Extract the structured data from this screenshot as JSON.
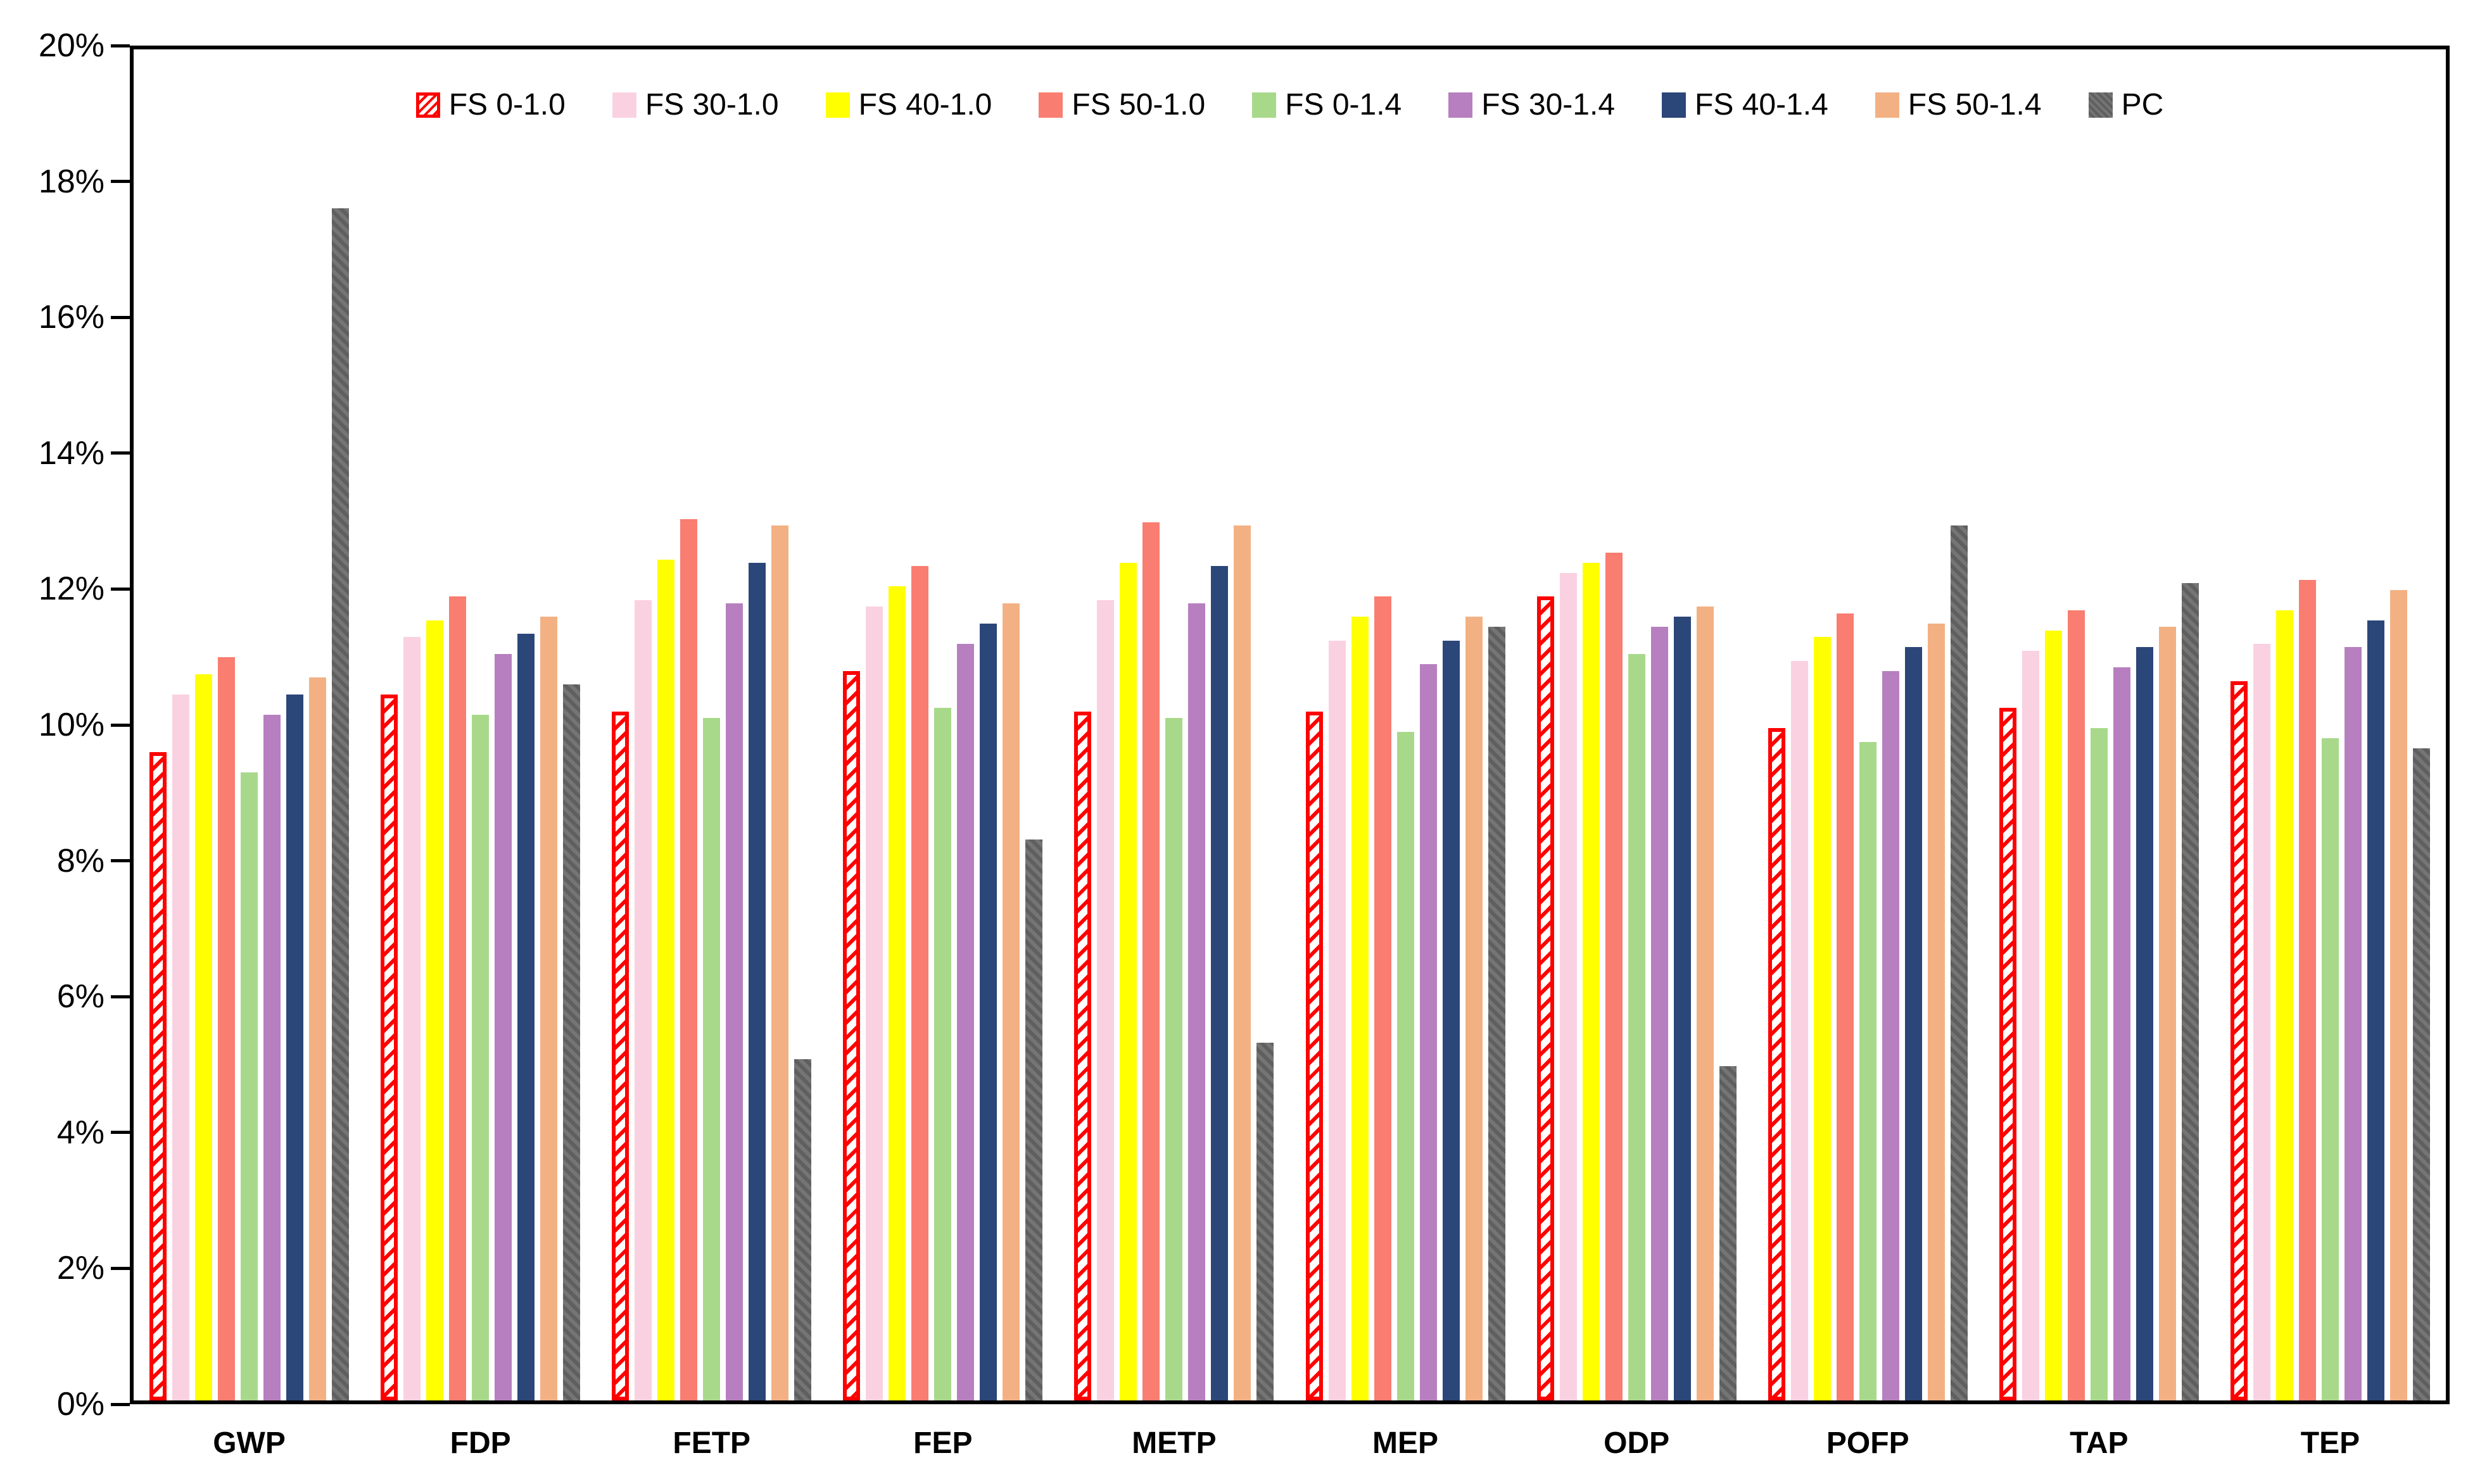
{
  "chart_data": {
    "type": "bar",
    "title": "",
    "xlabel": "",
    "ylabel": "",
    "ylim": [
      0,
      20
    ],
    "ytick_step_percent": 2,
    "ytick_labels": [
      "0%",
      "2%",
      "4%",
      "6%",
      "8%",
      "10%",
      "12%",
      "14%",
      "16%",
      "18%",
      "20%"
    ],
    "grid": false,
    "legend_position": "top-center-inside",
    "categories": [
      "GWP",
      "FDP",
      "FETP",
      "FEP",
      "METP",
      "MEP",
      "ODP",
      "POFP",
      "TAP",
      "TEP"
    ],
    "series": [
      {
        "name": "FS 0-1.0",
        "color": "#ff0000",
        "style": "hatched",
        "values": [
          9.6,
          10.45,
          10.2,
          10.8,
          10.2,
          10.2,
          11.9,
          9.95,
          10.25,
          10.65
        ]
      },
      {
        "name": "FS 30-1.0",
        "color": "#fad1e1",
        "style": "solid",
        "values": [
          10.45,
          11.3,
          11.85,
          11.75,
          11.85,
          11.25,
          12.25,
          10.95,
          11.1,
          11.2
        ]
      },
      {
        "name": "FS 40-1.0",
        "color": "#ffff00",
        "style": "solid",
        "values": [
          10.75,
          11.55,
          12.45,
          12.05,
          12.4,
          11.6,
          12.4,
          11.3,
          11.4,
          11.7
        ]
      },
      {
        "name": "FS 50-1.0",
        "color": "#f97d70",
        "style": "solid",
        "values": [
          11.0,
          11.9,
          13.05,
          12.35,
          13.0,
          11.9,
          12.55,
          11.65,
          11.7,
          12.15
        ]
      },
      {
        "name": "FS 0-1.4",
        "color": "#a8d98b",
        "style": "solid",
        "values": [
          9.3,
          10.15,
          10.1,
          10.25,
          10.1,
          9.9,
          11.05,
          9.75,
          9.95,
          9.8
        ]
      },
      {
        "name": "FS 30-1.4",
        "color": "#b77fbf",
        "style": "solid",
        "values": [
          10.15,
          11.05,
          11.8,
          11.2,
          11.8,
          10.9,
          11.45,
          10.8,
          10.85,
          11.15
        ]
      },
      {
        "name": "FS 40-1.4",
        "color": "#2b4678",
        "style": "solid",
        "values": [
          10.45,
          11.35,
          12.4,
          11.5,
          12.35,
          11.25,
          11.6,
          11.15,
          11.15,
          11.55
        ]
      },
      {
        "name": "FS 50-1.4",
        "color": "#f3b183",
        "style": "solid",
        "values": [
          10.7,
          11.6,
          12.95,
          11.8,
          12.95,
          11.6,
          11.75,
          11.5,
          11.45,
          12.0
        ]
      },
      {
        "name": "PC",
        "color": "#656565",
        "style": "textured",
        "values": [
          17.65,
          10.6,
          5.05,
          8.3,
          5.3,
          11.45,
          4.95,
          12.95,
          12.1,
          9.65
        ]
      }
    ]
  }
}
